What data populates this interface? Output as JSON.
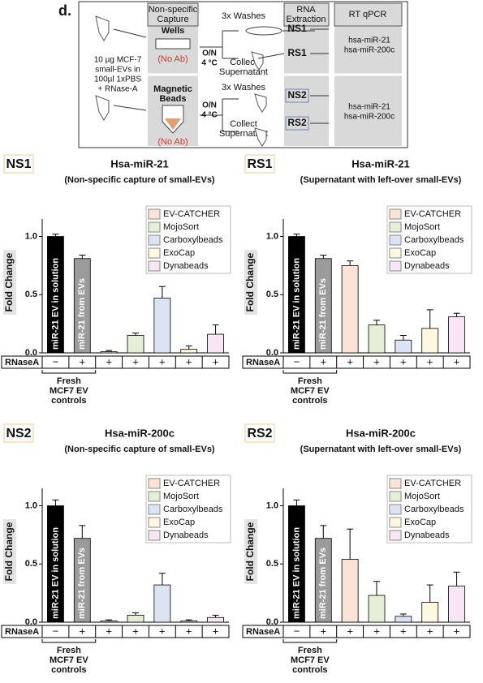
{
  "diagram": {
    "panel": "d.",
    "capture_header": [
      "Non-specific",
      "Capture"
    ],
    "wells": "Wells",
    "wells_note": "(No Ab)",
    "beads": [
      "Magnetic",
      "Beads"
    ],
    "beads_note": "(No Ab)",
    "sample": [
      "10 µg MCF-7",
      "small-EVs in",
      "100µl 1xPBS",
      "+ RNase-A"
    ],
    "washes_top": "3x Washes",
    "incubation_top": [
      "O/N",
      "4 °C"
    ],
    "collect_top": [
      "Collect",
      "Supernatant"
    ],
    "washes_bottom": "3x Washes",
    "incubation_bottom": [
      "O/N",
      "4 °C"
    ],
    "collect_bottom": [
      "Collect",
      "Supernatant"
    ],
    "rna_header": [
      "RNA",
      "Extraction"
    ],
    "samples": [
      "NS1",
      "RS1",
      "NS2",
      "RS2"
    ],
    "qpcr_header": "RT qPCR",
    "targets_top": [
      "hsa-miR-21",
      "hsa-miR-200c"
    ],
    "targets_bottom": [
      "hsa-miR-21",
      "hsa-miR-200c"
    ]
  },
  "chart_data": [
    {
      "type": "bar",
      "panel": "NS1",
      "title": "Hsa-miR-21",
      "subtitle": "(Non-specific capture of small-EVs)",
      "y_label": "Fold Change",
      "categories": [
        "miR-21 EV in solution",
        "miR-21 from EVs",
        null,
        null,
        null,
        null,
        null
      ],
      "values": [
        1.0,
        0.81,
        0.01,
        0.15,
        0.47,
        0.03,
        0.16
      ],
      "errors": [
        0.02,
        0.03,
        0.01,
        0.02,
        0.1,
        0.03,
        0.08
      ],
      "colors": [
        "#000000",
        "#9b9b9b",
        "#fbe3d5",
        "#e4efd6",
        "#dce4f4",
        "#fdf8df",
        "#f7e6f3"
      ],
      "ylim": [
        0,
        1.15
      ],
      "yticks": [
        {
          "value": 0,
          "label": "0.0"
        },
        0.5,
        {
          "value": 1,
          "label": "1.0"
        }
      ],
      "legend": [
        {
          "name": "EV-CATCHER",
          "color": "#fbe3d5"
        },
        {
          "name": "MojoSort",
          "color": "#e4efd6"
        },
        {
          "name": "Carboxylbeads",
          "color": "#dce4f4"
        },
        {
          "name": "ExoCap",
          "color": "#fdf8df"
        },
        {
          "name": "Dynabeads",
          "color": "#f7e6f3"
        }
      ],
      "treatment_label": "RNaseA",
      "treatment": [
        "−",
        "+",
        "+",
        "+",
        "+",
        "+",
        "+"
      ],
      "bracket_label": [
        "Fresh",
        "MCF7 EV",
        "controls"
      ]
    },
    {
      "type": "bar",
      "panel": "RS1",
      "title": "Hsa-miR-21",
      "subtitle": "(Supernatant with left-over small-EVs)",
      "y_label": "Fold Change",
      "categories": [
        "miR-21 EV in solution",
        "miR-21 from EVs",
        null,
        null,
        null,
        null,
        null
      ],
      "values": [
        1.0,
        0.81,
        0.75,
        0.24,
        0.11,
        0.21,
        0.31
      ],
      "errors": [
        0.02,
        0.03,
        0.04,
        0.04,
        0.04,
        0.16,
        0.03
      ],
      "colors": [
        "#000000",
        "#9b9b9b",
        "#fbe3d5",
        "#e4efd6",
        "#dce4f4",
        "#fdf8df",
        "#f7e6f3"
      ],
      "ylim": [
        0,
        1.15
      ],
      "yticks": [
        {
          "value": 0,
          "label": "0.0"
        },
        0.5,
        {
          "value": 1,
          "label": "1.0"
        }
      ],
      "legend": [
        {
          "name": "EV-CATCHER",
          "color": "#fbe3d5"
        },
        {
          "name": "MojoSort",
          "color": "#e4efd6"
        },
        {
          "name": "Carboxylbeads",
          "color": "#dce4f4"
        },
        {
          "name": "ExoCap",
          "color": "#fdf8df"
        },
        {
          "name": "Dynabeads",
          "color": "#f7e6f3"
        }
      ],
      "treatment_label": "RNaseA",
      "treatment": [
        "−",
        "+",
        "+",
        "+",
        "+",
        "+",
        "+"
      ],
      "bracket_label": [
        "Fresh",
        "MCF7 EV",
        "controls"
      ]
    },
    {
      "type": "bar",
      "panel": "NS2",
      "title": "Hsa-miR-200c",
      "subtitle": "(Non-specific capture of small-EVs)",
      "y_label": "Fold Change",
      "categories": [
        "miR-21 EV in solution",
        "miR-21 from EVs",
        null,
        null,
        null,
        null,
        null
      ],
      "values": [
        1.0,
        0.72,
        0.01,
        0.06,
        0.32,
        0.01,
        0.04
      ],
      "errors": [
        0.05,
        0.11,
        0.01,
        0.02,
        0.1,
        0.01,
        0.02
      ],
      "colors": [
        "#000000",
        "#9b9b9b",
        "#fbe3d5",
        "#e4efd6",
        "#dce4f4",
        "#fdf8df",
        "#f7e6f3"
      ],
      "ylim": [
        0,
        1.15
      ],
      "yticks": [
        {
          "value": 0,
          "label": "0.0"
        },
        0.5,
        {
          "value": 1,
          "label": "1.0"
        }
      ],
      "legend": [
        {
          "name": "EV-CATCHER",
          "color": "#fbe3d5"
        },
        {
          "name": "MojoSort",
          "color": "#e4efd6"
        },
        {
          "name": "Carboxylbeads",
          "color": "#dce4f4"
        },
        {
          "name": "ExoCap",
          "color": "#fdf8df"
        },
        {
          "name": "Dynabeads",
          "color": "#f7e6f3"
        }
      ],
      "treatment_label": "RNaseA",
      "treatment": [
        "−",
        "+",
        "+",
        "+",
        "+",
        "+",
        "+"
      ],
      "bracket_label": [
        "Fresh",
        "MCF7 EV",
        "controls"
      ]
    },
    {
      "type": "bar",
      "panel": "RS2",
      "title": "Hsa-miR-200c",
      "subtitle": "(Supernatant with left-over small-EVs)",
      "y_label": "Fold Change",
      "categories": [
        "miR-21 EV in solution",
        "miR-21 from EVs",
        null,
        null,
        null,
        null,
        null
      ],
      "values": [
        1.0,
        0.72,
        0.54,
        0.23,
        0.05,
        0.17,
        0.31
      ],
      "errors": [
        0.05,
        0.11,
        0.26,
        0.12,
        0.02,
        0.15,
        0.12
      ],
      "colors": [
        "#000000",
        "#9b9b9b",
        "#fbe3d5",
        "#e4efd6",
        "#dce4f4",
        "#fdf8df",
        "#f7e6f3"
      ],
      "ylim": [
        0,
        1.15
      ],
      "yticks": [
        {
          "value": 0,
          "label": "0.0"
        },
        0.5,
        {
          "value": 1,
          "label": "1.0"
        }
      ],
      "legend": [
        {
          "name": "EV-CATCHER",
          "color": "#fbe3d5"
        },
        {
          "name": "MojoSort",
          "color": "#e4efd6"
        },
        {
          "name": "Carboxylbeads",
          "color": "#dce4f4"
        },
        {
          "name": "ExoCap",
          "color": "#fdf8df"
        },
        {
          "name": "Dynabeads",
          "color": "#f7e6f3"
        }
      ],
      "treatment_label": "RNaseA",
      "treatment": [
        "−",
        "+",
        "+",
        "+",
        "+",
        "+",
        "+"
      ],
      "bracket_label": [
        "Fresh",
        "MCF7 EV",
        "controls"
      ]
    }
  ]
}
